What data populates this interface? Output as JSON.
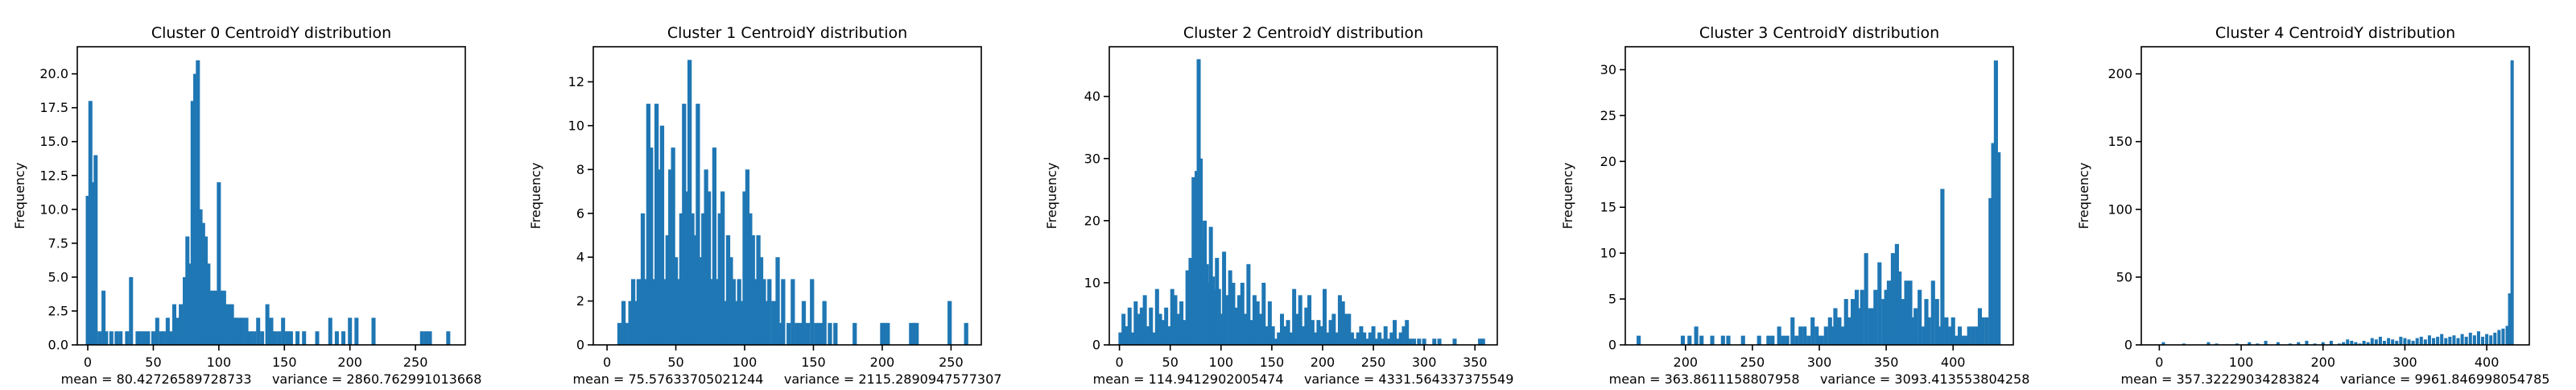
{
  "figure": {
    "background": "#ffffff",
    "bar_color": "#1f77b4"
  },
  "chart_data": [
    {
      "type": "bar",
      "title": "Cluster 0 CentroidY distribution",
      "xlabel": "mean = 80.42726589728733     variance = 2860.762991013668",
      "ylabel": "Frequency",
      "xlim": [
        -8,
        288
      ],
      "ylim": [
        0,
        22
      ],
      "xticks": [
        0,
        50,
        100,
        150,
        200,
        250
      ],
      "yticks": [
        0.0,
        2.5,
        5.0,
        7.5,
        10.0,
        12.5,
        15.0,
        17.5,
        20.0
      ],
      "ytick_labels": [
        "0.0",
        "2.5",
        "5.0",
        "7.5",
        "10.0",
        "12.5",
        "15.0",
        "17.5",
        "20.0"
      ],
      "bar_width": 1.4,
      "x": [
        0,
        2,
        4,
        6,
        9,
        12,
        14,
        18,
        22,
        25,
        30,
        33,
        38,
        40,
        43,
        46,
        50,
        53,
        56,
        58,
        61,
        63,
        66,
        69,
        71,
        74,
        76,
        78,
        80,
        82,
        84,
        86,
        88,
        90,
        92,
        94,
        96,
        98,
        100,
        102,
        104,
        106,
        108,
        110,
        112,
        114,
        116,
        118,
        121,
        124,
        127,
        130,
        133,
        137,
        140,
        143,
        146,
        149,
        152,
        155,
        160,
        165,
        175,
        185,
        190,
        195,
        200,
        205,
        218,
        255,
        258,
        261,
        275
      ],
      "values": [
        11,
        18,
        12,
        14,
        1,
        4,
        1,
        1,
        1,
        1,
        1,
        5,
        1,
        1,
        1,
        1,
        1,
        2,
        1,
        1,
        2,
        1,
        3,
        2,
        3,
        5,
        8,
        6,
        18,
        20,
        21,
        10,
        9,
        8,
        6,
        4,
        4,
        4,
        12,
        4,
        4,
        3,
        3,
        3,
        2,
        2,
        2,
        2,
        2,
        1,
        1,
        2,
        1,
        3,
        2,
        1,
        1,
        2,
        1,
        1,
        1,
        1,
        1,
        2,
        1,
        1,
        2,
        2,
        2,
        1,
        1,
        1,
        1
      ]
    },
    {
      "type": "bar",
      "title": "Cluster 1 CentroidY distribution",
      "xlabel": "mean = 75.57633705021244     variance = 2115.2890947577307",
      "ylabel": "Frequency",
      "xlim": [
        -10,
        272
      ],
      "ylim": [
        0,
        13.6
      ],
      "xticks": [
        0,
        50,
        100,
        150,
        200,
        250
      ],
      "yticks": [
        0,
        2,
        4,
        6,
        8,
        10,
        12
      ],
      "ytick_labels": [
        "0",
        "2",
        "4",
        "6",
        "8",
        "10",
        "12"
      ],
      "bar_width": 1.4,
      "x": [
        9,
        12,
        14,
        17,
        19,
        21,
        23,
        26,
        28,
        30,
        32,
        34,
        36,
        38,
        40,
        42,
        44,
        46,
        48,
        50,
        52,
        54,
        56,
        58,
        60,
        62,
        64,
        66,
        68,
        70,
        72,
        74,
        76,
        78,
        80,
        82,
        84,
        86,
        88,
        90,
        92,
        94,
        96,
        98,
        100,
        102,
        104,
        106,
        108,
        110,
        112,
        114,
        116,
        118,
        121,
        124,
        126,
        128,
        132,
        135,
        138,
        140,
        143,
        146,
        149,
        152,
        155,
        158,
        162,
        166,
        180,
        200,
        202,
        204,
        221,
        223,
        225,
        249,
        261
      ],
      "values": [
        1,
        2,
        1,
        2,
        3,
        2,
        3,
        6,
        3,
        11,
        9,
        3,
        11,
        8,
        10,
        3,
        5,
        8,
        9,
        4,
        3,
        6,
        11,
        7,
        13,
        6,
        5,
        11,
        4,
        6,
        8,
        7,
        3,
        9,
        3,
        6,
        7,
        2,
        5,
        4,
        3,
        2,
        3,
        2,
        7,
        8,
        6,
        5,
        3,
        5,
        4,
        3,
        2,
        3,
        2,
        4,
        1,
        3,
        1,
        3,
        1,
        1,
        2,
        1,
        3,
        1,
        1,
        2,
        1,
        1,
        1,
        1,
        1,
        1,
        1,
        1,
        1,
        2,
        1
      ]
    },
    {
      "type": "bar",
      "title": "Cluster 2 CentroidY distribution",
      "xlabel": "mean = 114.9412902005474     variance = 4331.564337375549",
      "ylabel": "Frequency",
      "xlim": [
        -10,
        372
      ],
      "ylim": [
        0,
        48
      ],
      "xticks": [
        0,
        50,
        100,
        150,
        200,
        250,
        300,
        350
      ],
      "yticks": [
        0,
        10,
        20,
        30,
        40
      ],
      "ytick_labels": [
        "0",
        "10",
        "20",
        "30",
        "40"
      ],
      "bar_width": 1.8,
      "x": [
        1,
        4,
        7,
        10,
        13,
        16,
        19,
        22,
        25,
        28,
        31,
        34,
        37,
        40,
        43,
        46,
        49,
        52,
        55,
        58,
        61,
        64,
        67,
        70,
        73,
        76,
        78,
        80,
        82,
        84,
        86,
        88,
        90,
        92,
        94,
        96,
        98,
        100,
        103,
        106,
        109,
        112,
        115,
        118,
        121,
        124,
        127,
        130,
        133,
        136,
        139,
        142,
        145,
        148,
        151,
        154,
        157,
        160,
        163,
        166,
        169,
        172,
        175,
        178,
        181,
        184,
        187,
        190,
        193,
        196,
        199,
        202,
        205,
        208,
        211,
        214,
        217,
        220,
        223,
        226,
        229,
        232,
        235,
        238,
        241,
        244,
        247,
        250,
        253,
        256,
        259,
        262,
        265,
        268,
        271,
        274,
        277,
        280,
        283,
        286,
        290,
        295,
        300,
        310,
        315,
        330,
        355,
        358
      ],
      "values": [
        2,
        5,
        3,
        6,
        2,
        7,
        5,
        6,
        8,
        3,
        6,
        2,
        9,
        5,
        4,
        6,
        3,
        9,
        8,
        5,
        7,
        4,
        12,
        14,
        27,
        28,
        46,
        30,
        17,
        20,
        13,
        10,
        19,
        11,
        9,
        14,
        9,
        5,
        15,
        8,
        12,
        10,
        6,
        8,
        10,
        5,
        13,
        4,
        8,
        7,
        5,
        10,
        3,
        7,
        3,
        1,
        2,
        5,
        3,
        4,
        2,
        9,
        5,
        8,
        3,
        6,
        8,
        4,
        2,
        4,
        3,
        9,
        2,
        4,
        5,
        2,
        8,
        7,
        5,
        5,
        2,
        1,
        2,
        3,
        2,
        1,
        2,
        3,
        1,
        2,
        1,
        3,
        1,
        2,
        4,
        1,
        2,
        3,
        4,
        1,
        1,
        1,
        1,
        1,
        1,
        1,
        1,
        1
      ]
    },
    {
      "type": "bar",
      "title": "Cluster 3 CentroidY distribution",
      "xlabel": "mean = 363.8611158807958     variance = 3093.413553804258",
      "ylabel": "Frequency",
      "xlim": [
        155,
        445
      ],
      "ylim": [
        0,
        32.5
      ],
      "xticks": [
        150,
        200,
        250,
        300,
        350,
        400
      ],
      "yticks": [
        0,
        5,
        10,
        15,
        20,
        25,
        30
      ],
      "ytick_labels": [
        "0",
        "5",
        "10",
        "15",
        "20",
        "25",
        "30"
      ],
      "bar_width": 1.4,
      "x": [
        165,
        198,
        203,
        208,
        212,
        220,
        228,
        232,
        243,
        255,
        262,
        265,
        270,
        273,
        276,
        280,
        283,
        286,
        289,
        292,
        295,
        298,
        300,
        302,
        305,
        308,
        310,
        312,
        315,
        318,
        320,
        322,
        325,
        328,
        330,
        332,
        335,
        338,
        340,
        342,
        345,
        348,
        350,
        352,
        355,
        358,
        360,
        362,
        365,
        368,
        370,
        372,
        375,
        378,
        380,
        382,
        385,
        388,
        390,
        392,
        395,
        398,
        400,
        402,
        405,
        408,
        410,
        412,
        415,
        418,
        420,
        422,
        425,
        428,
        430,
        432,
        434
      ],
      "values": [
        1,
        1,
        1,
        2,
        1,
        1,
        1,
        1,
        1,
        1,
        1,
        1,
        2,
        1,
        1,
        3,
        1,
        2,
        2,
        1,
        3,
        2,
        1,
        1,
        2,
        3,
        2,
        4,
        3,
        2,
        5,
        3,
        5,
        6,
        4,
        6,
        10,
        4,
        4,
        6,
        9,
        5,
        6,
        7,
        10,
        11,
        8,
        5,
        7,
        7,
        3,
        4,
        6,
        2,
        5,
        3,
        7,
        5,
        2,
        17,
        3,
        2,
        3,
        1,
        2,
        1,
        1,
        2,
        2,
        2,
        4,
        3,
        3,
        16,
        22,
        31,
        21
      ]
    },
    {
      "type": "bar",
      "title": "Cluster 4 CentroidY distribution",
      "xlabel": "mean = 357.32229034283824     variance = 9961.846998054785",
      "ylabel": "Frequency",
      "xlim": [
        -22,
        452
      ],
      "ylim": [
        0,
        220
      ],
      "xticks": [
        0,
        100,
        200,
        300,
        400
      ],
      "yticks": [
        0,
        50,
        100,
        150,
        200
      ],
      "ytick_labels": [
        "0",
        "50",
        "100",
        "150",
        "200"
      ],
      "bar_width": 1.8,
      "x": [
        5,
        30,
        60,
        70,
        95,
        110,
        120,
        130,
        145,
        160,
        170,
        180,
        190,
        200,
        210,
        220,
        225,
        230,
        235,
        240,
        245,
        250,
        255,
        260,
        265,
        270,
        275,
        280,
        285,
        290,
        295,
        300,
        305,
        310,
        315,
        320,
        325,
        330,
        335,
        340,
        345,
        350,
        355,
        360,
        365,
        370,
        375,
        380,
        385,
        390,
        395,
        400,
        405,
        410,
        415,
        420,
        425,
        428,
        431
      ],
      "values": [
        2,
        1,
        2,
        1,
        1,
        2,
        1,
        3,
        2,
        1,
        2,
        3,
        1,
        2,
        3,
        1,
        2,
        4,
        3,
        2,
        1,
        3,
        2,
        5,
        4,
        6,
        3,
        5,
        4,
        3,
        6,
        5,
        4,
        3,
        5,
        6,
        4,
        7,
        5,
        6,
        8,
        5,
        6,
        7,
        5,
        8,
        6,
        9,
        7,
        10,
        6,
        8,
        7,
        9,
        11,
        12,
        14,
        38,
        210
      ]
    }
  ]
}
